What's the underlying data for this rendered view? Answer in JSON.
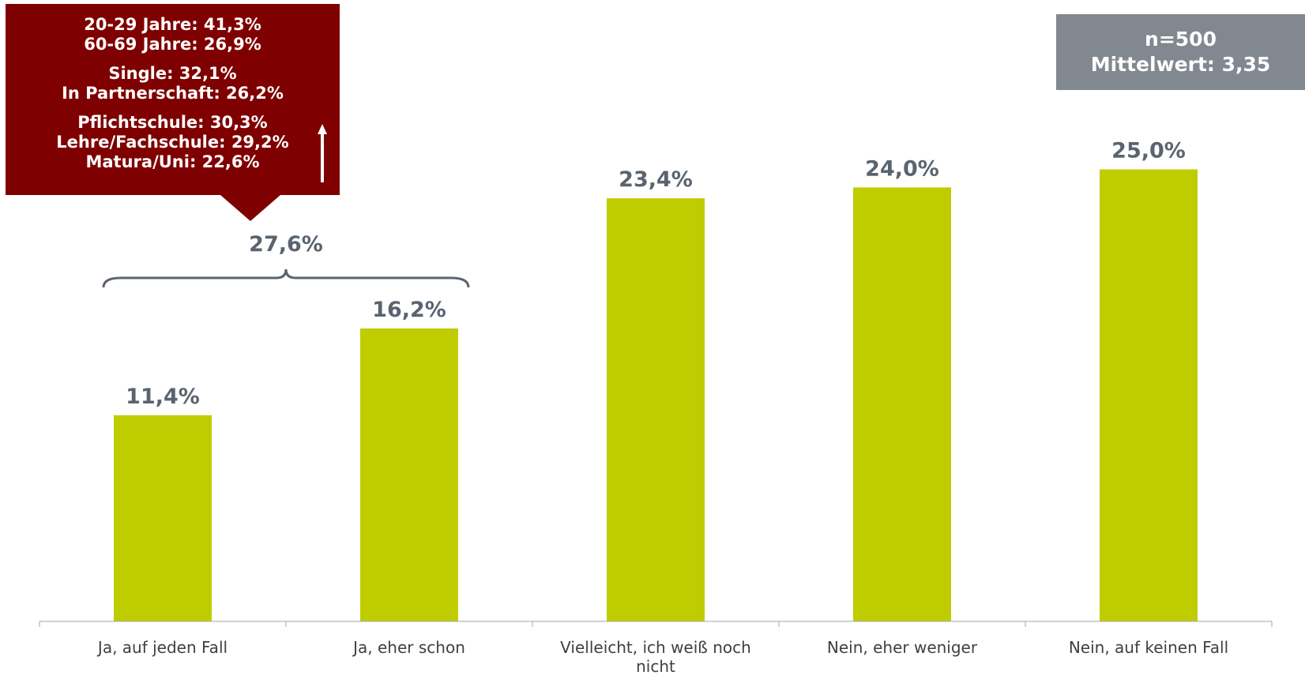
{
  "chart_data": {
    "type": "bar",
    "categories": [
      "Ja, auf jeden Fall",
      "Ja, eher schon",
      "Vielleicht, ich weiß noch nicht",
      "Nein, eher weniger",
      "Nein, auf keinen Fall"
    ],
    "values": [
      11.4,
      16.2,
      23.4,
      24.0,
      25.0
    ],
    "value_labels": [
      "11,4%",
      "16,2%",
      "23,4%",
      "24,0%",
      "25,0%"
    ],
    "ylim": [
      0,
      30
    ],
    "grid": false,
    "bar_color": "#bfcd00",
    "label_color": "#5a6470",
    "group_bracket": {
      "covers": [
        "Ja, auf jeden Fall",
        "Ja, eher schon"
      ],
      "label": "27,6%"
    }
  },
  "callout": {
    "groups": [
      [
        "20-29 Jahre: 41,3%",
        "60-69 Jahre: 26,9%"
      ],
      [
        "Single: 32,1%",
        "In Partnerschaft: 26,2%"
      ],
      [
        "Pflichtschule: 30,3%",
        "Lehre/Fachschule: 29,2%",
        "Matura/Uni: 22,6%"
      ]
    ],
    "color": "#7f0000"
  },
  "info": {
    "n": "n=500",
    "mean": "Mittelwert: 3,35",
    "color": "#818890"
  }
}
